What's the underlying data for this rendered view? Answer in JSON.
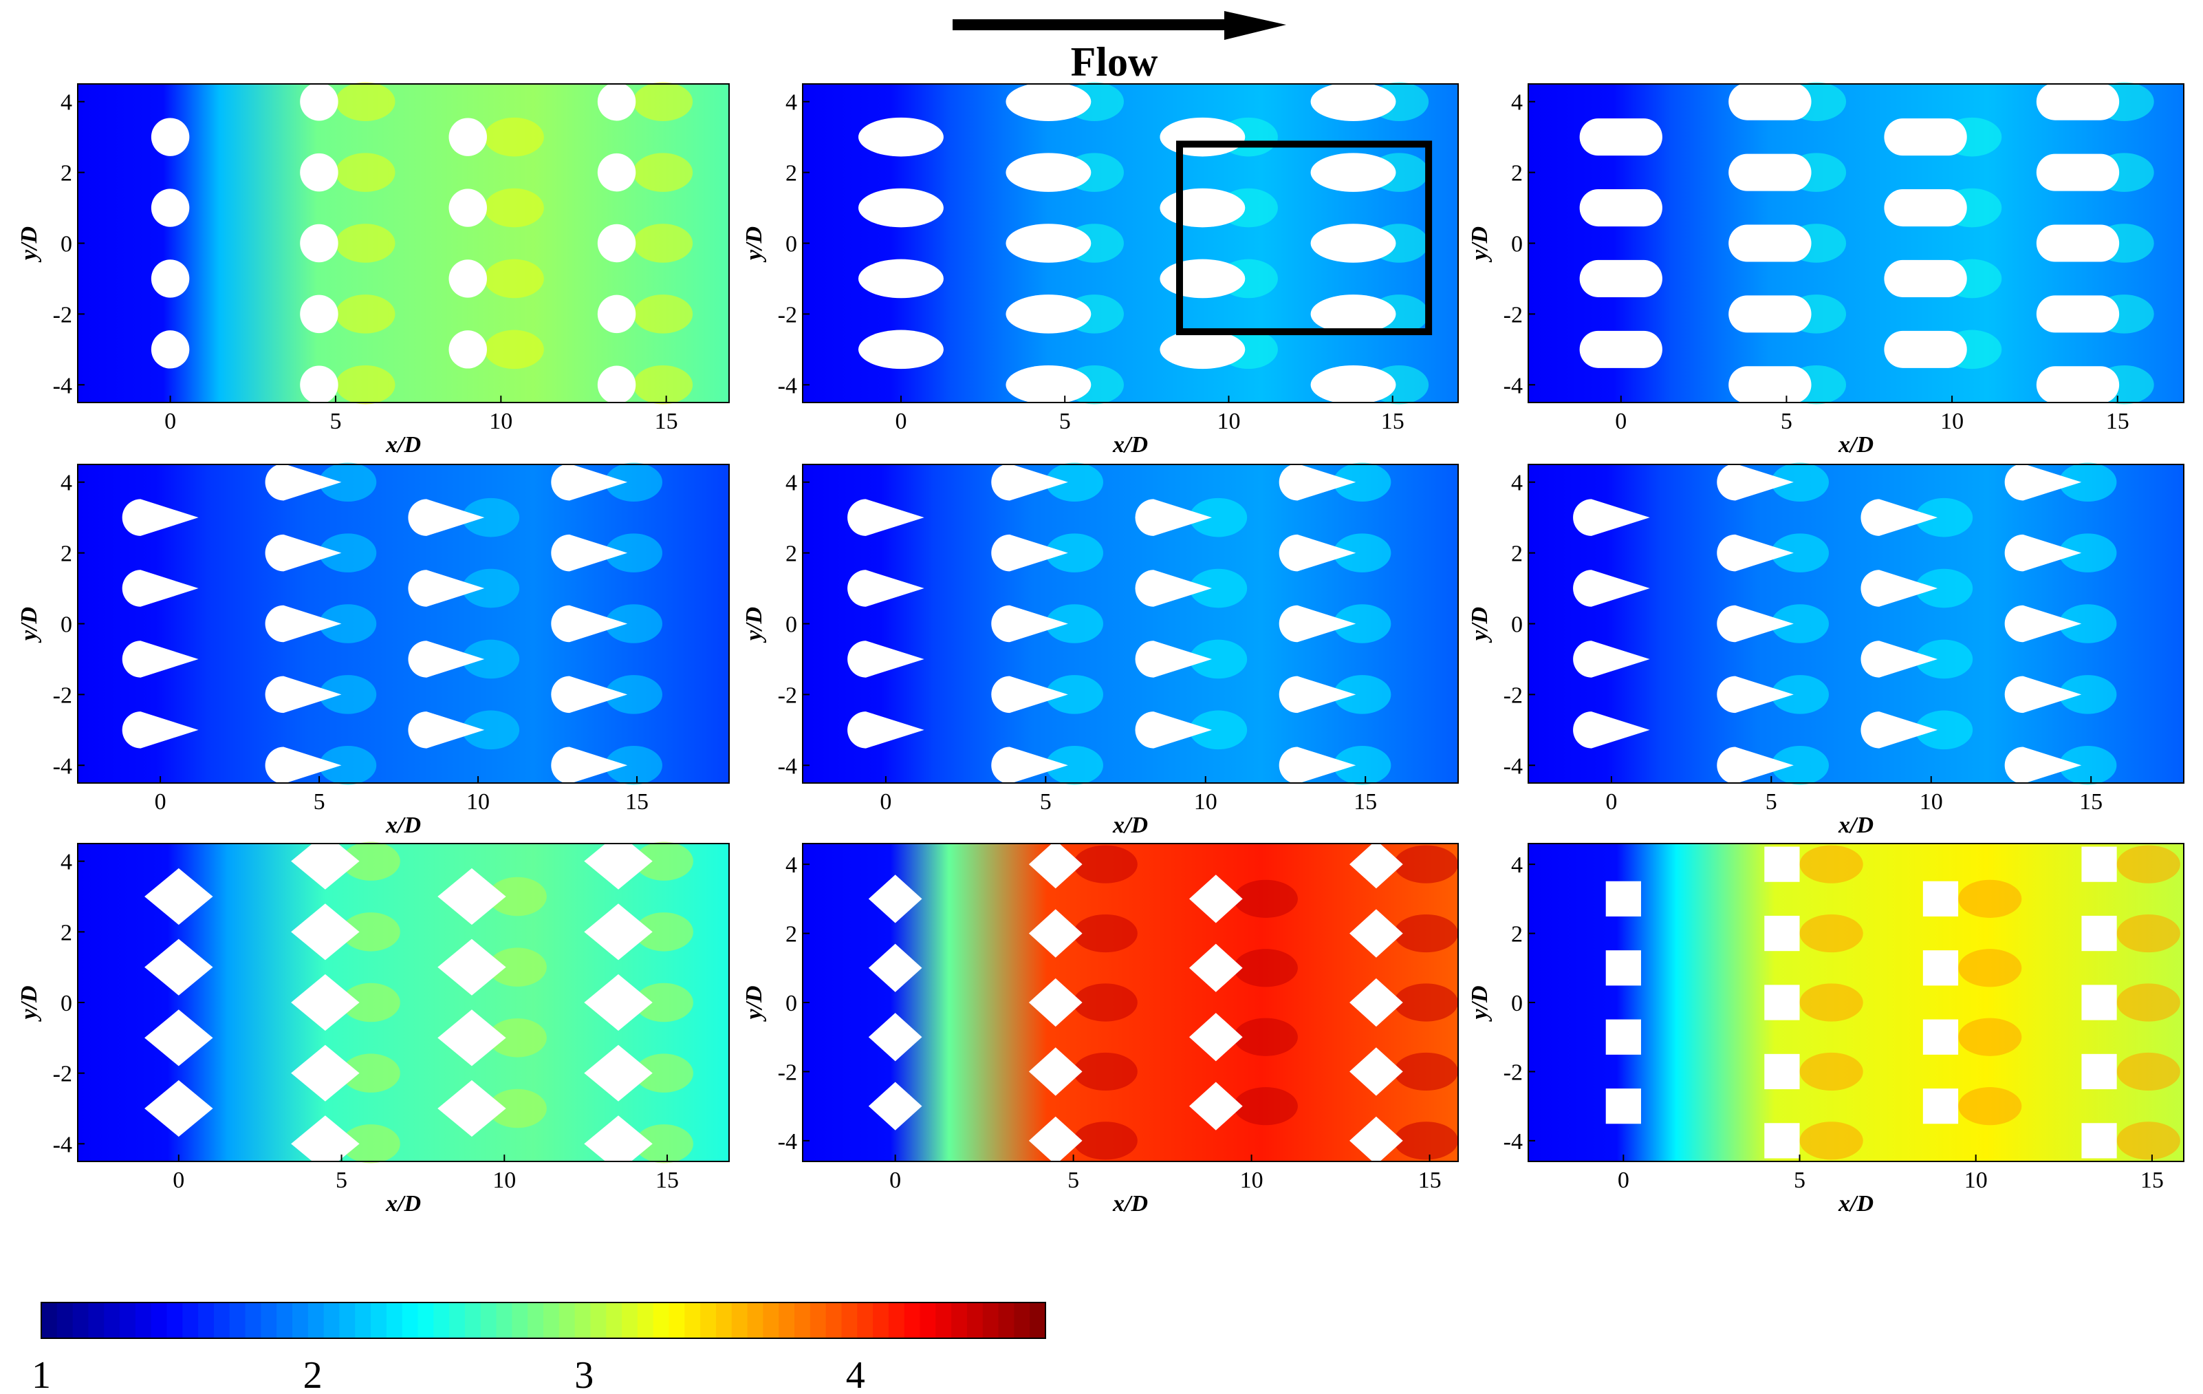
{
  "flow_label": "Flow",
  "colors": {
    "background_low": "#1a3cff",
    "obstacle": "#ffffff",
    "highlight_box": "#000000"
  },
  "colorbar": {
    "ticks": [
      "1",
      "2",
      "3",
      "4"
    ],
    "range": [
      1,
      4.7
    ],
    "colormap": "jet"
  },
  "chart_data": [
    {
      "type": "heatmap",
      "panel": "row1-col1",
      "obstacle_shape": "circle",
      "xlabel": "x/D",
      "ylabel": "y/D",
      "xlim": [
        -2.8,
        16.9
      ],
      "ylim": [
        -4.5,
        4.5
      ],
      "xticks": [
        "0",
        "5",
        "10",
        "15"
      ],
      "yticks": [
        "4",
        "2",
        "0",
        "-2",
        "-4"
      ],
      "level": 2.8
    },
    {
      "type": "heatmap",
      "panel": "row1-col2",
      "obstacle_shape": "ellipse",
      "xlabel": "x/D",
      "ylabel": "y/D",
      "xlim": [
        -3.0,
        17.0
      ],
      "ylim": [
        -4.5,
        4.5
      ],
      "xticks": [
        "0",
        "5",
        "10",
        "15"
      ],
      "yticks": [
        "4",
        "2",
        "0",
        "-2",
        "-4"
      ],
      "level": 2.0,
      "highlight_box": {
        "x": [
          8.5,
          16.1
        ],
        "y": [
          -2.5,
          2.8
        ]
      }
    },
    {
      "type": "heatmap",
      "panel": "row1-col3",
      "obstacle_shape": "oval",
      "xlabel": "x/D",
      "ylabel": "y/D",
      "xlim": [
        -2.8,
        17.0
      ],
      "ylim": [
        -4.5,
        4.5
      ],
      "xticks": [
        "0",
        "5",
        "10",
        "15"
      ],
      "yticks": [
        "4",
        "2",
        "0",
        "-2",
        "-4"
      ],
      "level": 2.0
    },
    {
      "type": "heatmap",
      "panel": "row2-col1",
      "obstacle_shape": "teardrop",
      "xlabel": "x/D",
      "ylabel": "y/D",
      "xlim": [
        -2.6,
        17.9
      ],
      "ylim": [
        -4.5,
        4.5
      ],
      "xticks": [
        "0",
        "5",
        "10",
        "15"
      ],
      "yticks": [
        "4",
        "2",
        "0",
        "-2",
        "-4"
      ],
      "level": 1.8
    },
    {
      "type": "heatmap",
      "panel": "row2-col2",
      "obstacle_shape": "teardrop",
      "xlabel": "x/D",
      "ylabel": "y/D",
      "xlim": [
        -2.6,
        17.9
      ],
      "ylim": [
        -4.5,
        4.5
      ],
      "xticks": [
        "0",
        "5",
        "10",
        "15"
      ],
      "yticks": [
        "4",
        "2",
        "0",
        "-2",
        "-4"
      ],
      "level": 1.9
    },
    {
      "type": "heatmap",
      "panel": "row2-col3",
      "obstacle_shape": "teardrop",
      "xlabel": "x/D",
      "ylabel": "y/D",
      "xlim": [
        -2.6,
        17.9
      ],
      "ylim": [
        -4.5,
        4.5
      ],
      "xticks": [
        "0",
        "5",
        "10",
        "15"
      ],
      "yticks": [
        "4",
        "2",
        "0",
        "-2",
        "-4"
      ],
      "level": 1.9
    },
    {
      "type": "heatmap",
      "panel": "row3-col1",
      "obstacle_shape": "diamond",
      "xlabel": "x/D",
      "ylabel": "y/D",
      "xlim": [
        -3.1,
        16.9
      ],
      "ylim": [
        -4.5,
        4.5
      ],
      "xticks": [
        "0",
        "5",
        "10",
        "15"
      ],
      "yticks": [
        "4",
        "2",
        "0",
        "-2",
        "-4"
      ],
      "level": 2.6
    },
    {
      "type": "heatmap",
      "panel": "row3-col2",
      "obstacle_shape": "diamond",
      "xlabel": "x/D",
      "ylabel": "y/D",
      "xlim": [
        -2.6,
        15.8
      ],
      "ylim": [
        -4.6,
        4.6
      ],
      "xticks": [
        "0",
        "5",
        "10",
        "15"
      ],
      "yticks": [
        "4",
        "2",
        "0",
        "-2",
        "-4"
      ],
      "level": 4.0
    },
    {
      "type": "heatmap",
      "panel": "row3-col3",
      "obstacle_shape": "square",
      "xlabel": "x/D",
      "ylabel": "y/D",
      "xlim": [
        -2.7,
        15.9
      ],
      "ylim": [
        -4.6,
        4.6
      ],
      "xticks": [
        "0",
        "5",
        "10",
        "15"
      ],
      "yticks": [
        "4",
        "2",
        "0",
        "-2",
        "-4"
      ],
      "level": 3.2
    }
  ]
}
